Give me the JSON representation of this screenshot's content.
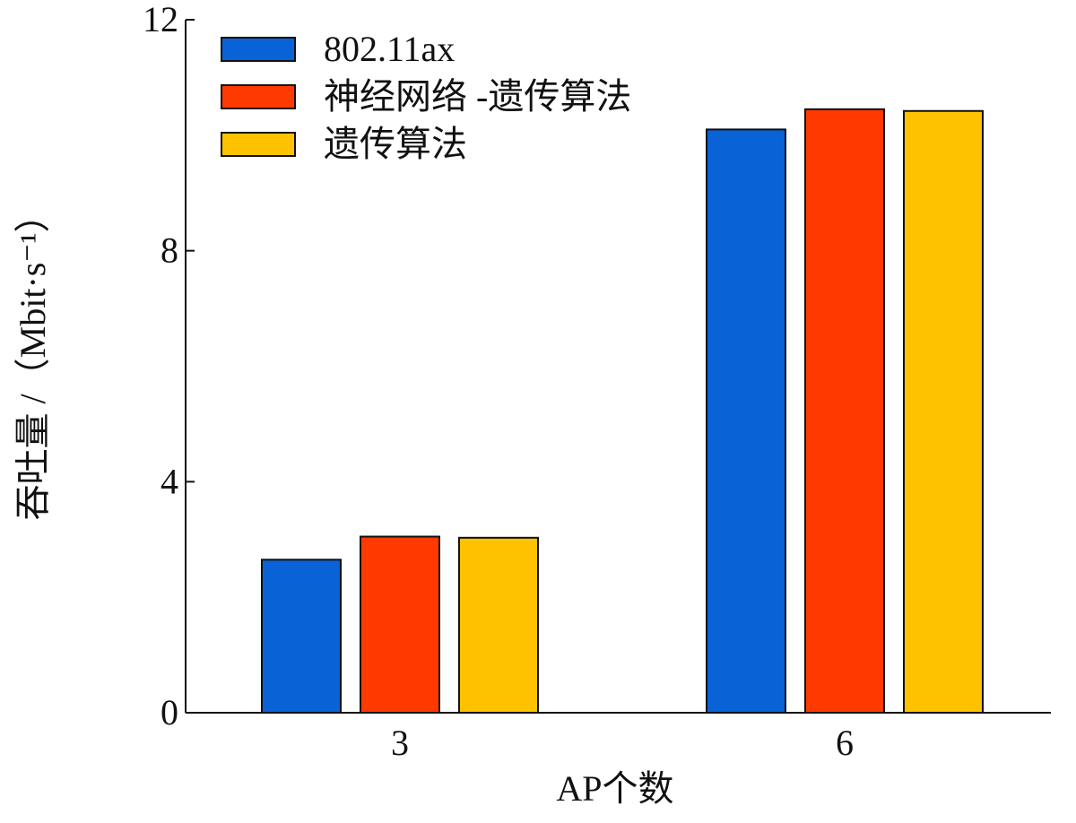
{
  "chart_data": {
    "type": "bar",
    "categories": [
      "3",
      "6"
    ],
    "series": [
      {
        "name": "802.11ax",
        "values": [
          2.65,
          10.1
        ],
        "color": "#0a63d6"
      },
      {
        "name": "神经网络 -遗传算法",
        "values": [
          3.05,
          10.45
        ],
        "color": "#fe3a00"
      },
      {
        "name": "遗传算法",
        "values": [
          3.03,
          10.42
        ],
        "color": "#fec200"
      }
    ],
    "xlabel": "AP个数",
    "ylabel": "吞吐量 /（Mbit·s⁻¹）",
    "ylim": [
      0,
      12
    ],
    "yticks": [
      "0",
      "4",
      "8",
      "12"
    ],
    "ytick_values": [
      0,
      4,
      8,
      12
    ],
    "legend_position": "top-left",
    "grid": false
  }
}
